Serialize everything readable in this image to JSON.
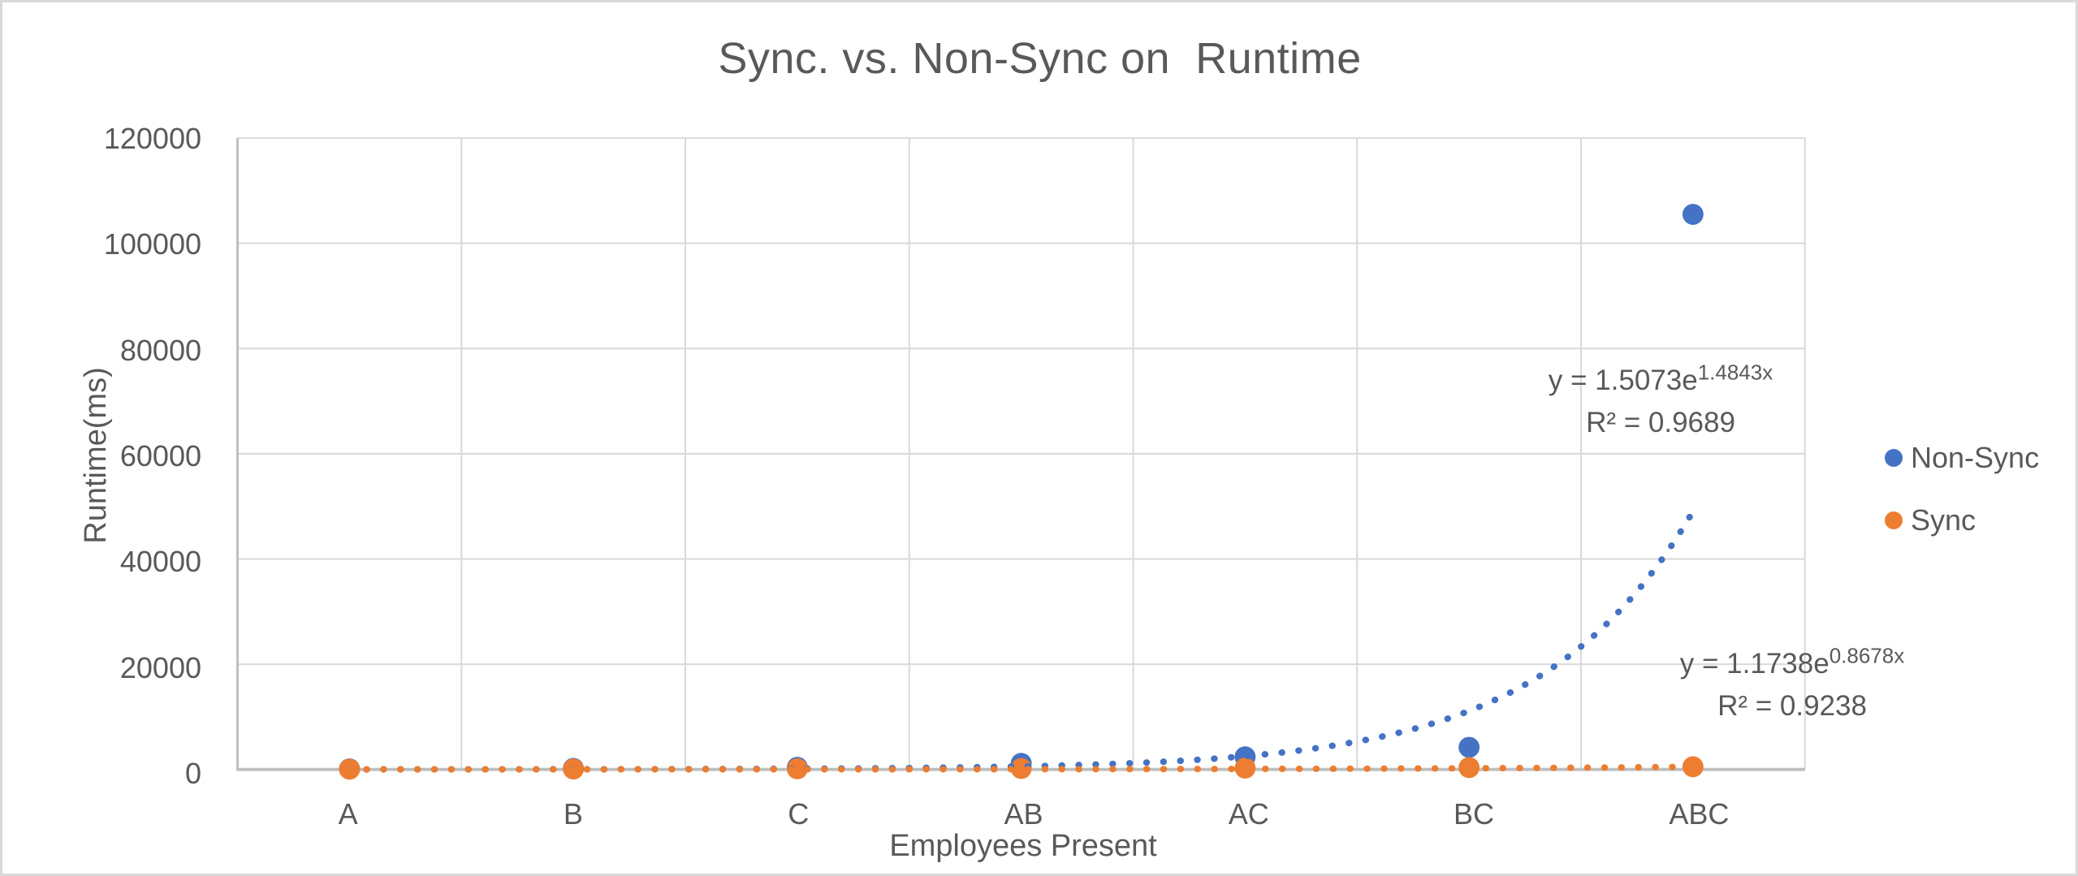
{
  "chart_data": {
    "type": "scatter",
    "title": "Sync. vs. Non-Sync on  Runtime",
    "xlabel": "Employees Present",
    "ylabel": "Runtime(ms)",
    "categories": [
      "A",
      "B",
      "C",
      "AB",
      "AC",
      "BC",
      "ABC"
    ],
    "y_ticks": [
      0,
      20000,
      40000,
      60000,
      80000,
      100000,
      120000
    ],
    "ylim": [
      0,
      120000
    ],
    "grid": true,
    "legend_position": "right",
    "series": [
      {
        "name": "Non-Sync",
        "color": "#4472C4",
        "values": [
          100,
          200,
          400,
          1150,
          2400,
          4200,
          105500
        ],
        "trendline": {
          "type": "exponential",
          "coef_a": 1.5073,
          "coef_b": 1.4843,
          "equation_prefix": "y = 1.5073e",
          "equation_exponent": "1.4843x",
          "r2_label": "R² = 0.9689"
        }
      },
      {
        "name": "Sync",
        "color": "#ED7D31",
        "values": [
          50,
          80,
          120,
          180,
          250,
          350,
          500
        ],
        "trendline": {
          "type": "exponential",
          "coef_a": 1.1738,
          "coef_b": 0.8678,
          "equation_prefix": "y = 1.1738e",
          "equation_exponent": "0.8678x",
          "r2_label": "R² = 0.9238"
        }
      }
    ],
    "style": {
      "gridline_color": "#D9D9D9",
      "axis_color": "#BFBFBF",
      "text_color": "#595959",
      "marker_radius": 13
    }
  }
}
